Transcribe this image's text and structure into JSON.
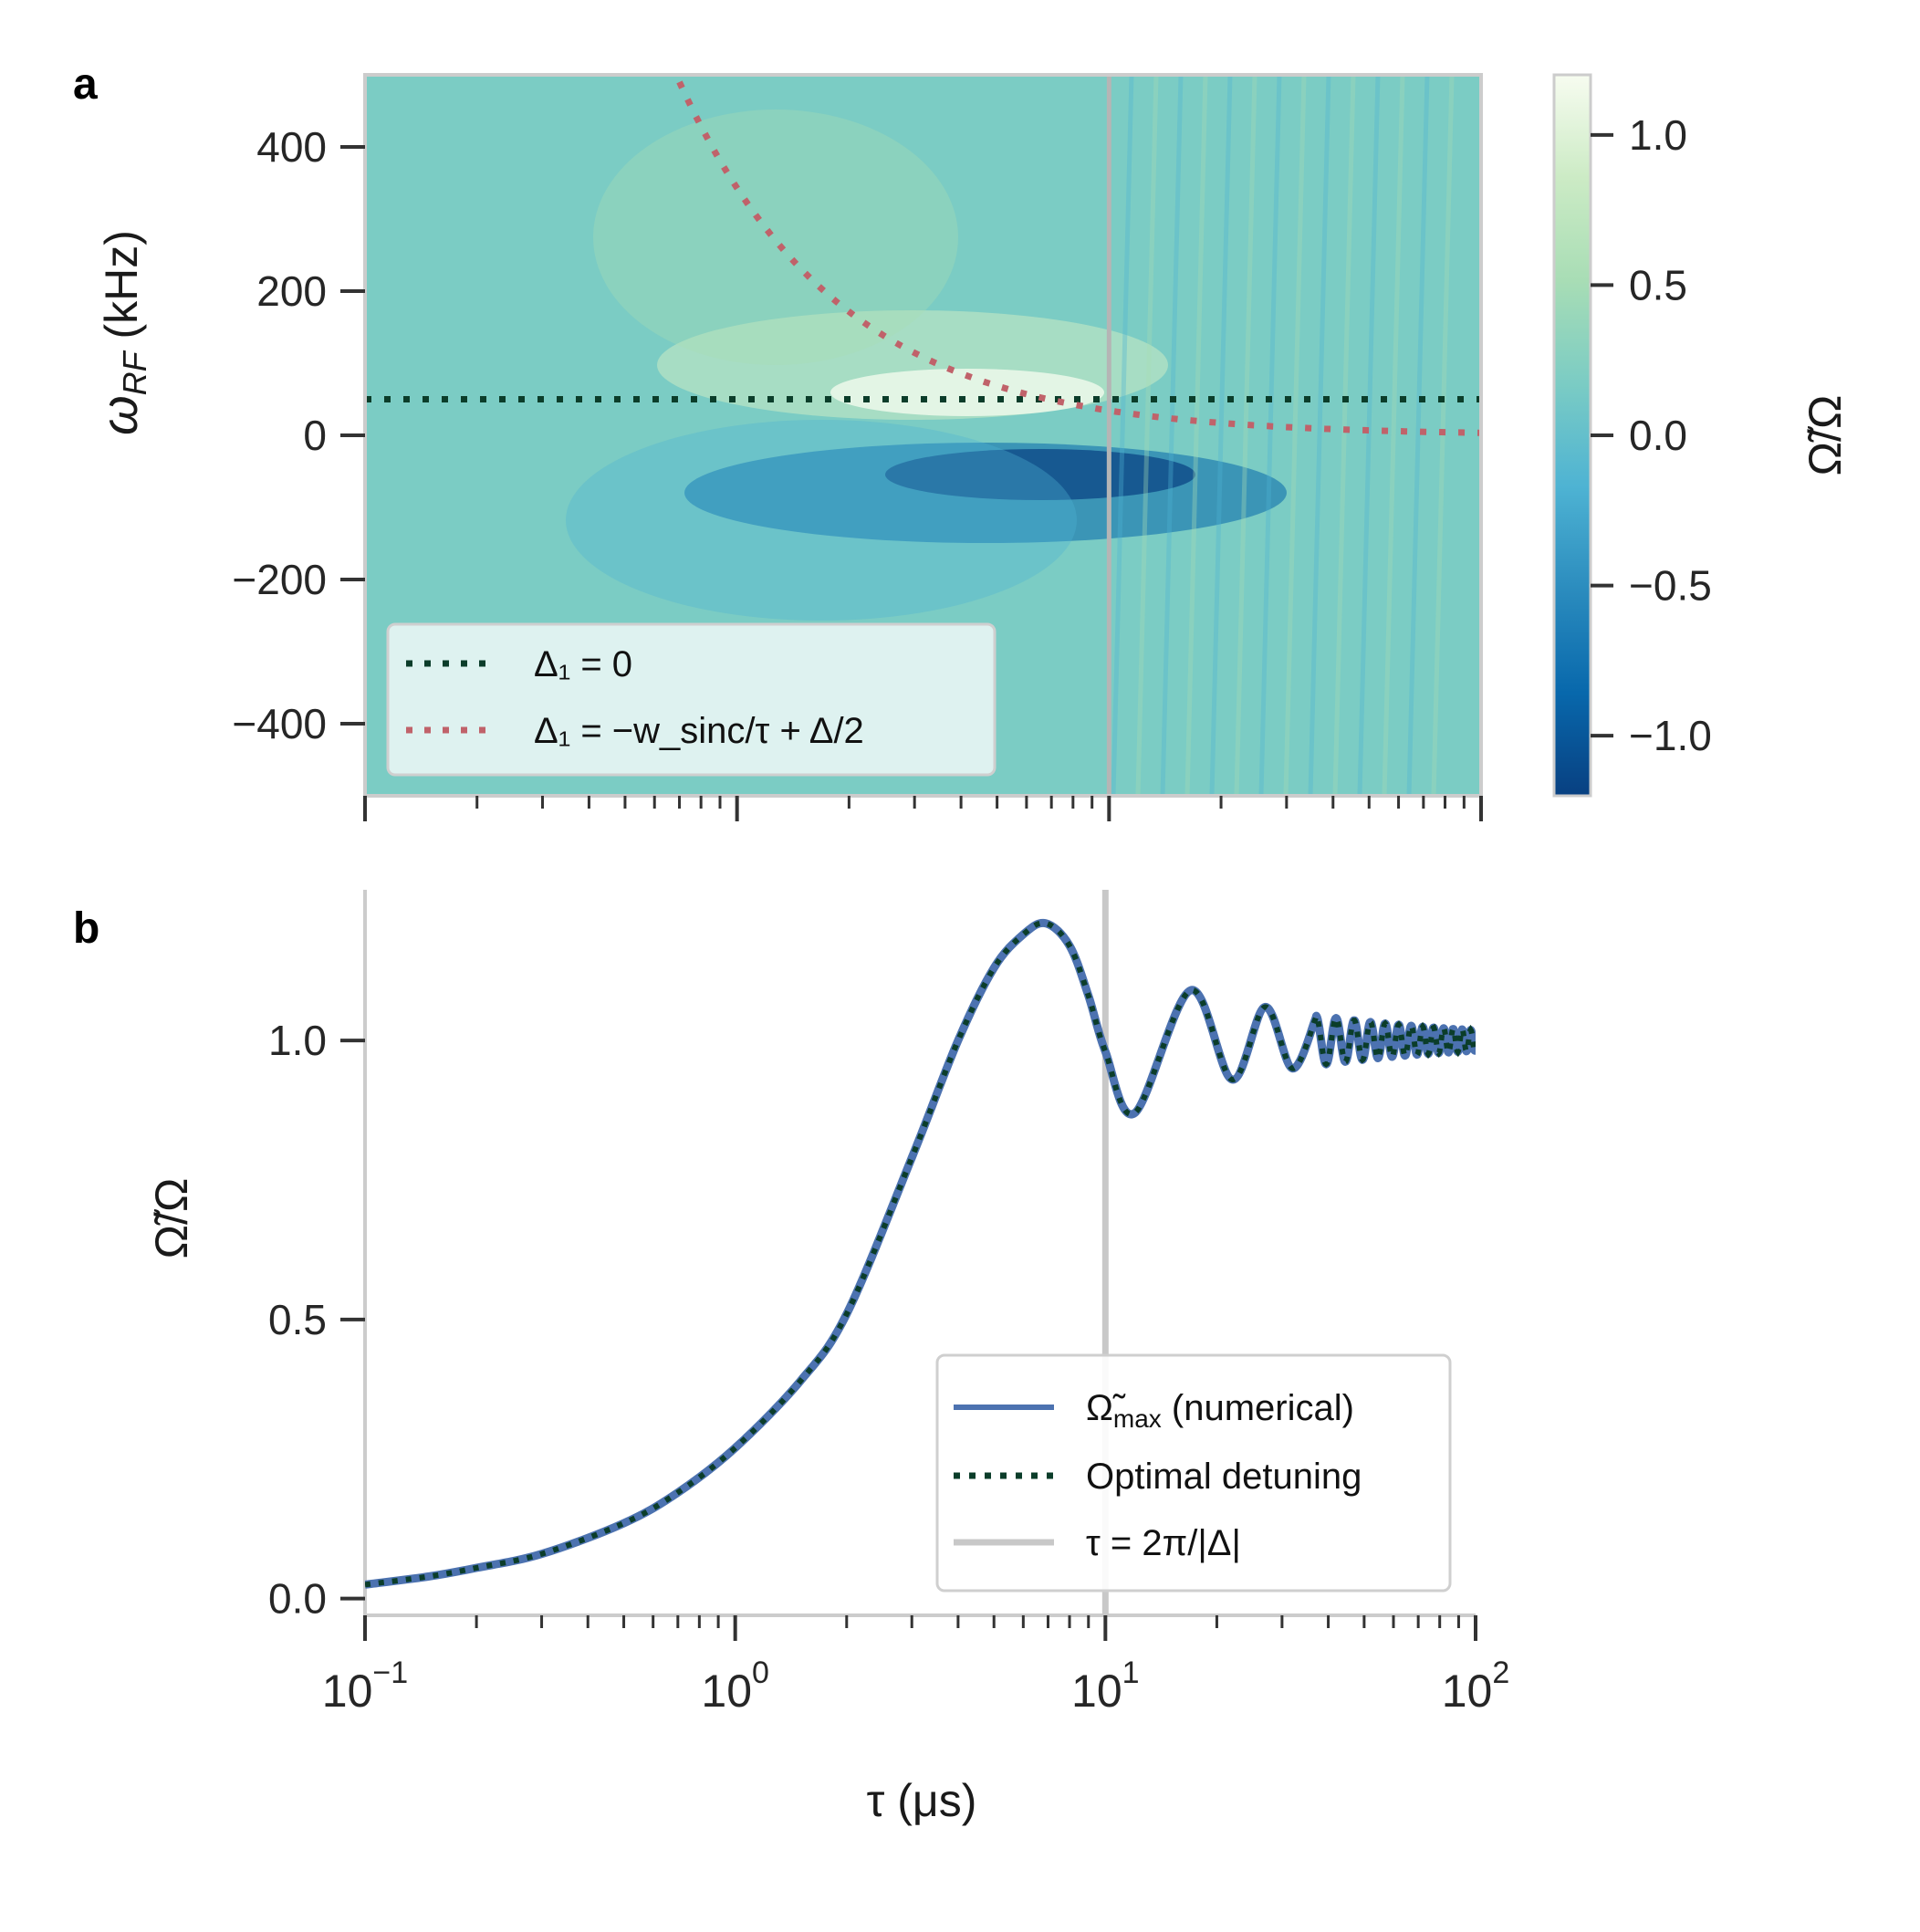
{
  "panel_labels": [
    "a",
    "b"
  ],
  "chart_data": [
    {
      "type": "heatmap",
      "panel": "a",
      "xscale": "log",
      "xlim": [
        0.1,
        100
      ],
      "ylim": [
        -500,
        500
      ],
      "ylabel": "ω_RF (kHz)",
      "ylabel_main": "ω",
      "ylabel_sub": "RF",
      "ylabel_unit": " (kHz)",
      "yticks": [
        400,
        200,
        0,
        -200,
        -400
      ],
      "yticklabels": [
        "400",
        "200",
        "0",
        "−200",
        "−400"
      ],
      "vline_x": 10,
      "colorbar": {
        "label": "Ω̃/Ω",
        "range": [
          -1.2,
          1.2
        ],
        "ticks": [
          1.0,
          0.5,
          0.0,
          -0.5,
          -1.0
        ],
        "ticklabels": [
          "1.0",
          "0.5",
          "0.0",
          "−0.5",
          "−1.0"
        ],
        "colors": [
          "#084081",
          "#0868ac",
          "#2b8cbe",
          "#4eb3d3",
          "#7bccc4",
          "#a8ddb5",
          "#ccebc5",
          "#f7fcf0"
        ]
      },
      "series": [
        {
          "name": "Δ₁ = 0",
          "style": "dotted",
          "color": "#0b3d2a",
          "y_const": 50
        },
        {
          "name": "Δ₁ = −w_sinc/τ + Δ/2",
          "style": "dotted",
          "color": "#c0626a",
          "x_start": 0.7,
          "note": "y ≈ 343/τ"
        }
      ],
      "legend": [
        {
          "label": "Δ₁ = 0",
          "color": "#0b3d2a"
        },
        {
          "label": "Δ₁ = −w_sinc/τ + Δ/2",
          "color": "#c0626a"
        }
      ],
      "legend_loc": "lower-left"
    },
    {
      "type": "line",
      "panel": "b",
      "xscale": "log",
      "xlim": [
        0.1,
        100
      ],
      "ylim": [
        -0.03,
        1.27
      ],
      "xlabel": "τ (μs)",
      "ylabel": "Ω̃/Ω",
      "xticks": [
        0.1,
        1,
        10,
        100
      ],
      "xticklabels": [
        "10^-1",
        "10^0",
        "10^1",
        "10^2"
      ],
      "xtick_base": "10",
      "xtick_exps": [
        "−1",
        "0",
        "1",
        "2"
      ],
      "yticks": [
        1.0,
        0.5,
        0.0
      ],
      "yticklabels": [
        "1.0",
        "0.5",
        "0.0"
      ],
      "vline_x": 10,
      "peak": {
        "x": 6.9,
        "y": 1.21
      },
      "first_min": {
        "x": 12,
        "y": 0.87
      },
      "x": [
        0.1,
        0.15,
        0.2,
        0.3,
        0.5,
        0.7,
        1.0,
        1.5,
        2.0,
        3.0,
        4.0,
        5.0,
        6.0,
        6.9,
        8.0,
        9.0,
        10.0,
        12.0,
        17.0,
        22.0,
        27.0,
        32.0,
        37.0,
        100
      ],
      "series": [
        {
          "name": "Ω̃_max (numerical)",
          "color": "#4c72b0",
          "style": "solid",
          "values": [
            0.025,
            0.04,
            0.055,
            0.08,
            0.135,
            0.19,
            0.27,
            0.39,
            0.51,
            0.79,
            1.0,
            1.13,
            1.19,
            1.21,
            1.17,
            1.08,
            0.98,
            0.87,
            1.09,
            0.93,
            1.06,
            0.95,
            1.04,
            1.0
          ]
        },
        {
          "name": "Optimal detuning",
          "color": "#0b3d2a",
          "style": "dotted",
          "values": [
            0.025,
            0.04,
            0.055,
            0.08,
            0.135,
            0.19,
            0.27,
            0.39,
            0.51,
            0.79,
            1.0,
            1.13,
            1.19,
            1.21,
            1.17,
            1.08,
            0.98,
            0.87,
            1.09,
            0.93,
            1.06,
            0.95,
            1.04,
            1.0
          ]
        }
      ],
      "legend": [
        {
          "label": "Ω̃_max (numerical)",
          "main": "Ω̃",
          "sub": "max",
          "rest": " (numerical)",
          "color": "#4c72b0",
          "style": "solid"
        },
        {
          "label": "Optimal detuning",
          "color": "#0b3d2a",
          "style": "dotted"
        },
        {
          "label": "τ = 2π/|Δ|",
          "color": "#c8c8c8",
          "style": "solid"
        }
      ],
      "legend_loc": "lower-right"
    }
  ]
}
